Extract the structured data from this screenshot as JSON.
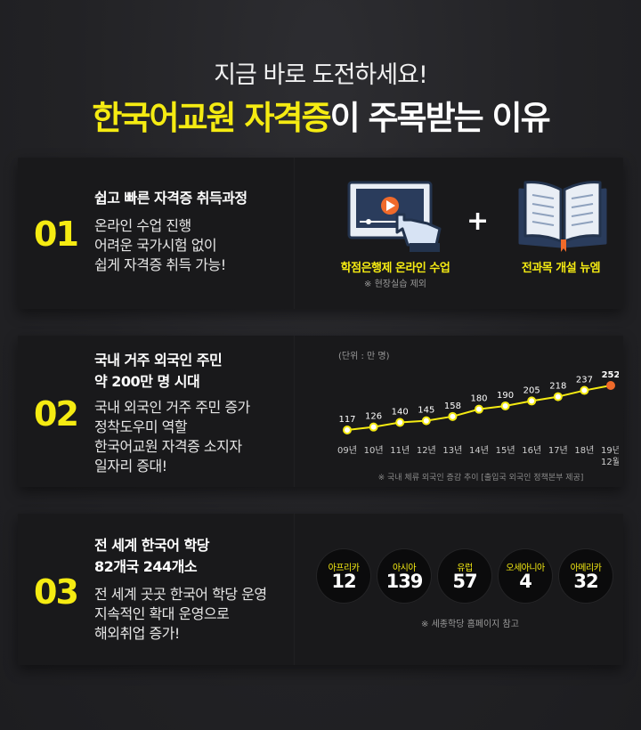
{
  "header": {
    "subtitle": "지금 바로 도전하세요!",
    "title_highlight": "한국어교원 자격증",
    "title_rest": "이 주목받는 이유"
  },
  "section1": {
    "number": "01",
    "title": "쉽고 빠른 자격증 취득과정",
    "desc": [
      "온라인 수업 진행",
      "어려운 국가시험 없이",
      "쉽게 자격증 취득 가능!"
    ],
    "icons": [
      "online-lecture-icon",
      "plus-icon",
      "open-book-icon"
    ],
    "label1": "학점은행제 온라인 수업",
    "note1": "※ 현장실습 제외",
    "label2": "전과목 개설 뉴엠"
  },
  "section2": {
    "number": "02",
    "title": [
      "국내 거주 외국인 주민",
      "약 200만 명 시대"
    ],
    "desc": [
      "국내 외국인 거주 주민 증가",
      "정착도우미 역할",
      "한국어교원 자격증 소지자",
      "일자리 증대!"
    ],
    "note": "※ 국내 체류 외국인 증감 추이 [출입국 외국인 정책본부 제공]"
  },
  "chart_data": {
    "type": "line",
    "unit_label": "(단위 : 만 명)",
    "categories": [
      "09년",
      "10년",
      "11년",
      "12년",
      "13년",
      "14년",
      "15년",
      "16년",
      "17년",
      "18년",
      "19년 12월"
    ],
    "values": [
      117,
      126,
      140,
      145,
      158,
      180,
      190,
      205,
      218,
      237,
      252
    ],
    "line_color": "#f5eb12",
    "last_point_color": "#f06a2a"
  },
  "section3": {
    "number": "03",
    "title": [
      "전 세계 한국어 학당",
      "82개국 244개소"
    ],
    "desc": [
      "전 세계 곳곳 한국어 학당 운영",
      "지속적인 확대 운영으로",
      "해외취업 증가!"
    ],
    "regions": [
      {
        "name": "아프리카",
        "count": "12"
      },
      {
        "name": "아시아",
        "count": "139"
      },
      {
        "name": "유럽",
        "count": "57"
      },
      {
        "name": "오세아니아",
        "count": "4"
      },
      {
        "name": "아메리카",
        "count": "32"
      }
    ],
    "note": "※ 세종학당 홈페이지 참고"
  },
  "colors": {
    "accent": "#f5eb12",
    "panel": "#19191b",
    "background": "#232326"
  }
}
